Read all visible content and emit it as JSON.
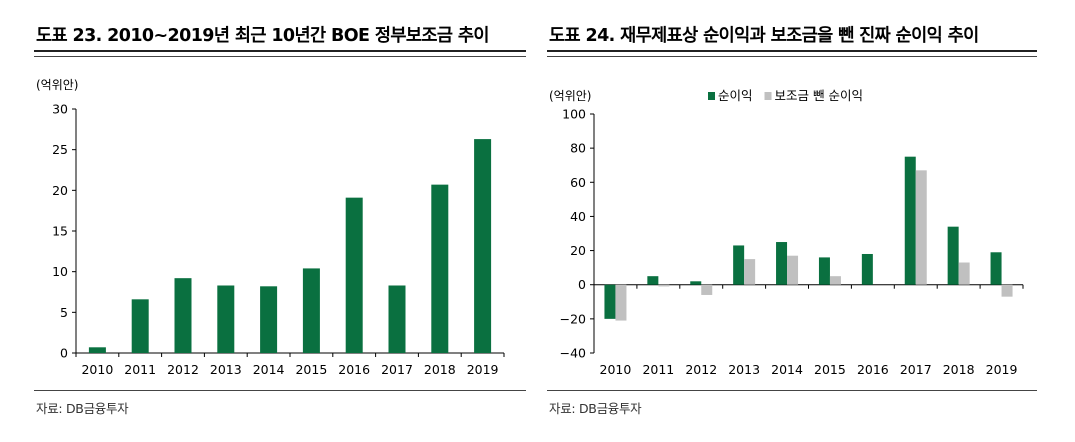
{
  "colors": {
    "primary": "#0a7040",
    "secondary": "#c0c0c0",
    "axis": "#000000",
    "rule": "#222222"
  },
  "left": {
    "title": "도표 23. 2010~2019년 최근 10년간 BOE 정부보조금 추이",
    "source": "자료: DB금융투자"
  },
  "right": {
    "title": "도표 24. 재무제표상 순이익과 보조금을 뺀 진짜 순이익 추이",
    "source": "자료: DB금융투자"
  },
  "chart_data": [
    {
      "type": "bar",
      "ylabel": "(억위안)",
      "ylim": [
        0,
        30
      ],
      "yticks": [
        0,
        5,
        10,
        15,
        20,
        25,
        30
      ],
      "categories": [
        "2010",
        "2011",
        "2012",
        "2013",
        "2014",
        "2015",
        "2016",
        "2017",
        "2018",
        "2019"
      ],
      "series": [
        {
          "name": "정부보조금",
          "values": [
            0.7,
            6.6,
            9.2,
            8.3,
            8.2,
            10.4,
            19.1,
            8.3,
            20.7,
            26.3
          ]
        }
      ]
    },
    {
      "type": "bar",
      "ylabel": "(억위안)",
      "ylim": [
        -40,
        100
      ],
      "yticks": [
        -40,
        -20,
        0,
        20,
        40,
        60,
        80,
        100
      ],
      "categories": [
        "2010",
        "2011",
        "2012",
        "2013",
        "2014",
        "2015",
        "2016",
        "2017",
        "2018",
        "2019"
      ],
      "legend_position": "top",
      "series": [
        {
          "name": "순이익",
          "values": [
            -20,
            5,
            2,
            23,
            25,
            16,
            18,
            75,
            34,
            19
          ]
        },
        {
          "name": "보조금 뺀 순이익",
          "values": [
            -21,
            -1,
            -6,
            15,
            17,
            5,
            0,
            67,
            13,
            -7
          ]
        }
      ]
    }
  ]
}
